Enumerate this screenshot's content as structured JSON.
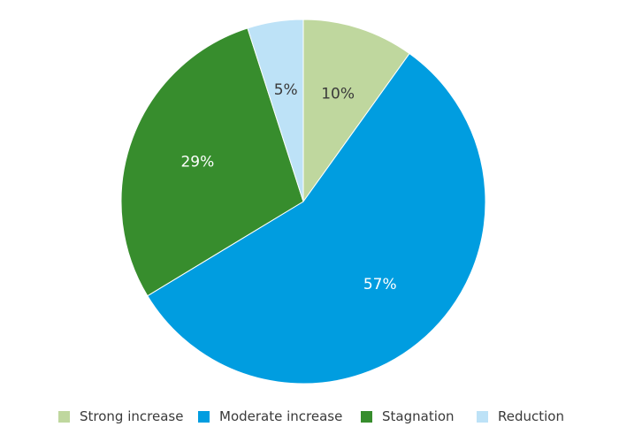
{
  "chart_data": {
    "type": "pie",
    "categories": [
      "Strong increase",
      "Moderate increase",
      "Stagnation",
      "Reduction"
    ],
    "values": [
      10,
      57,
      29,
      5
    ],
    "labels": [
      "10%",
      "57%",
      "29%",
      "5%"
    ],
    "colors": [
      "#bfd79e",
      "#009de0",
      "#378d2d",
      "#bde2f7"
    ],
    "label_colors": [
      "#3a3a3a",
      "#ffffff",
      "#ffffff",
      "#3a3a3a"
    ],
    "start_direction": "top",
    "clockwise": true,
    "legend_position": "bottom",
    "title": "",
    "legend": [
      {
        "label": "Strong increase",
        "color": "#bfd79e"
      },
      {
        "label": "Moderate increase",
        "color": "#009de0"
      },
      {
        "label": "Stagnation",
        "color": "#378d2d"
      },
      {
        "label": "Reduction",
        "color": "#bde2f7"
      }
    ]
  }
}
